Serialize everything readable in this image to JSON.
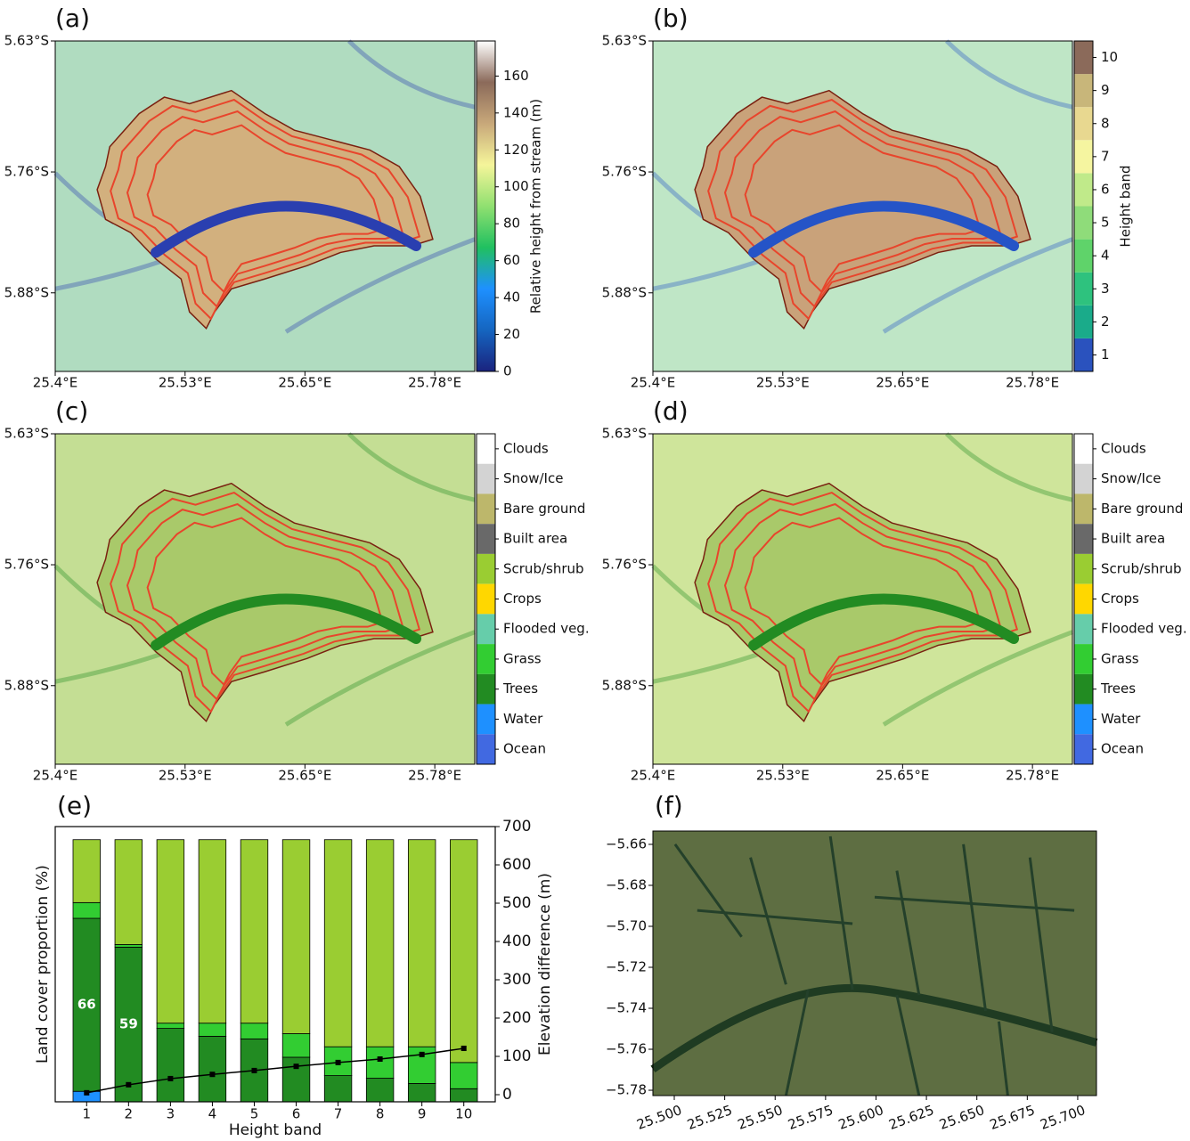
{
  "chart_data": [
    {
      "type": "map",
      "panel": "(a)",
      "xlim": [
        25.4,
        25.82
      ],
      "ylim": [
        -5.958,
        -5.63
      ],
      "xticks": [
        {
          "value": 25.4,
          "label": "25.4°E"
        },
        {
          "value": 25.53,
          "label": "25.53°E"
        },
        {
          "value": 25.65,
          "label": "25.65°E"
        },
        {
          "value": 25.78,
          "label": "25.78°E"
        }
      ],
      "yticks": [
        {
          "value": -5.63,
          "label": "5.63°S"
        },
        {
          "value": -5.76,
          "label": "5.76°S"
        },
        {
          "value": -5.88,
          "label": "5.88°S"
        }
      ],
      "background": "#b0dcc0",
      "basin_color": "#d2b07e",
      "river_color": "#2a3fb0",
      "colorbar": {
        "label": "Relative height from stream (m)",
        "lim": [
          0,
          179
        ],
        "ticks": [
          0,
          20,
          40,
          60,
          80,
          100,
          120,
          140,
          160
        ],
        "colors": [
          "#1a237e",
          "#1565c0",
          "#1e90ff",
          "#20c060",
          "#90e070",
          "#f5f59a",
          "#c8a87a",
          "#8b6a5a",
          "#ffffff"
        ]
      }
    },
    {
      "type": "map",
      "panel": "(b)",
      "xlim": [
        25.4,
        25.82
      ],
      "ylim": [
        -5.958,
        -5.63
      ],
      "xticks": [
        {
          "value": 25.4,
          "label": "25.4°E"
        },
        {
          "value": 25.53,
          "label": "25.53°E"
        },
        {
          "value": 25.65,
          "label": "25.65°E"
        },
        {
          "value": 25.78,
          "label": "25.78°E"
        }
      ],
      "yticks": [
        {
          "value": -5.63,
          "label": "5.63°S"
        },
        {
          "value": -5.76,
          "label": "5.76°S"
        },
        {
          "value": -5.88,
          "label": "5.88°S"
        }
      ],
      "background": "#bfe6c6",
      "basin_color": "#c9a27a",
      "river_color": "#2554c7",
      "colorbar": {
        "label": "Height band",
        "lim": [
          0.5,
          10.5
        ],
        "ticks": [
          1,
          2,
          3,
          4,
          5,
          6,
          7,
          8,
          9,
          10
        ],
        "discrete": true,
        "colors": [
          "#2a52be",
          "#1aab8a",
          "#2ec27e",
          "#5fd36a",
          "#8fdc7a",
          "#c0ea8a",
          "#f5f5a0",
          "#e8d890",
          "#c8b67a",
          "#8b6a5a"
        ]
      }
    },
    {
      "type": "map",
      "panel": "(c)",
      "xlim": [
        25.4,
        25.82
      ],
      "ylim": [
        -5.958,
        -5.63
      ],
      "xticks": [
        {
          "value": 25.4,
          "label": "25.4°E"
        },
        {
          "value": 25.53,
          "label": "25.53°E"
        },
        {
          "value": 25.65,
          "label": "25.65°E"
        },
        {
          "value": 25.78,
          "label": "25.78°E"
        }
      ],
      "yticks": [
        {
          "value": -5.63,
          "label": "5.63°S"
        },
        {
          "value": -5.76,
          "label": "5.76°S"
        },
        {
          "value": -5.88,
          "label": "5.88°S"
        }
      ],
      "background": "#c4de94",
      "basin_color": "#a9c96a",
      "river_color": "#228b22",
      "colorbar": {
        "categories": [
          "Clouds",
          "Snow/Ice",
          "Bare ground",
          "Built area",
          "Scrub/shrub",
          "Crops",
          "Flooded veg.",
          "Grass",
          "Trees",
          "Water",
          "Ocean"
        ],
        "colors": [
          "#ffffff",
          "#d3d3d3",
          "#bdb76b",
          "#696969",
          "#9acd32",
          "#ffd700",
          "#66cdaa",
          "#32cd32",
          "#228b22",
          "#1e90ff",
          "#4169e1"
        ]
      }
    },
    {
      "type": "map",
      "panel": "(d)",
      "xlim": [
        25.4,
        25.82
      ],
      "ylim": [
        -5.958,
        -5.63
      ],
      "xticks": [
        {
          "value": 25.4,
          "label": "25.4°E"
        },
        {
          "value": 25.53,
          "label": "25.53°E"
        },
        {
          "value": 25.65,
          "label": "25.65°E"
        },
        {
          "value": 25.78,
          "label": "25.78°E"
        }
      ],
      "yticks": [
        {
          "value": -5.63,
          "label": "5.63°S"
        },
        {
          "value": -5.76,
          "label": "5.76°S"
        },
        {
          "value": -5.88,
          "label": "5.88°S"
        }
      ],
      "background": "#cfe59b",
      "basin_color": "#a9c96a",
      "river_color": "#228b22",
      "colorbar": {
        "categories": [
          "Clouds",
          "Snow/Ice",
          "Bare ground",
          "Built area",
          "Scrub/shrub",
          "Crops",
          "Flooded veg.",
          "Grass",
          "Trees",
          "Water",
          "Ocean"
        ],
        "colors": [
          "#ffffff",
          "#d3d3d3",
          "#bdb76b",
          "#696969",
          "#9acd32",
          "#ffd700",
          "#66cdaa",
          "#32cd32",
          "#228b22",
          "#1e90ff",
          "#4169e1"
        ]
      }
    },
    {
      "type": "bar",
      "panel": "(e)",
      "stacked": true,
      "categories": [
        "1",
        "2",
        "3",
        "4",
        "5",
        "6",
        "7",
        "8",
        "9",
        "10"
      ],
      "xlabel": "Height band",
      "ylabel": "Land cover proportion (%)",
      "ylim": [
        0,
        105
      ],
      "y2label": "Elevation difference (m)",
      "y2lim": [
        -18.6,
        700
      ],
      "y2ticks": [
        0,
        100,
        200,
        300,
        400,
        500,
        600,
        700
      ],
      "series": [
        {
          "color": "#1e90ff",
          "values": [
            4,
            0,
            0,
            0,
            0,
            0,
            0,
            0,
            0,
            0
          ]
        },
        {
          "color": "#228b22",
          "values": [
            66,
            59,
            28,
            25,
            24,
            17,
            10,
            9,
            7,
            5
          ],
          "value_labels": [
            "66",
            "59",
            null,
            null,
            null,
            null,
            null,
            null,
            null,
            null
          ]
        },
        {
          "color": "#32cd32",
          "values": [
            6,
            1,
            2,
            5,
            6,
            9,
            11,
            12,
            14,
            10
          ]
        },
        {
          "color": "#9acd32",
          "values": [
            24,
            40,
            70,
            70,
            70,
            74,
            79,
            79,
            79,
            85
          ]
        },
        {
          "axis": "y2",
          "color": "#000000",
          "values": [
            5,
            26,
            42,
            53,
            63,
            74,
            84,
            93,
            105,
            121
          ]
        }
      ]
    },
    {
      "type": "image",
      "panel": "(f)",
      "xlim": [
        25.4894,
        25.7093
      ],
      "ylim": [
        -5.7826,
        -5.6535
      ],
      "background": "#5e6e42",
      "xticks": [
        {
          "value": 25.5,
          "label": "25.500"
        },
        {
          "value": 25.525,
          "label": "25.525"
        },
        {
          "value": 25.55,
          "label": "25.550"
        },
        {
          "value": 25.575,
          "label": "25.575"
        },
        {
          "value": 25.6,
          "label": "25.600"
        },
        {
          "value": 25.625,
          "label": "25.625"
        },
        {
          "value": 25.65,
          "label": "25.650"
        },
        {
          "value": 25.675,
          "label": "25.675"
        },
        {
          "value": 25.7,
          "label": "25.700"
        }
      ],
      "yticks": [
        {
          "value": -5.66,
          "label": "−5.66"
        },
        {
          "value": -5.68,
          "label": "−5.68"
        },
        {
          "value": -5.7,
          "label": "−5.70"
        },
        {
          "value": -5.72,
          "label": "−5.72"
        },
        {
          "value": -5.74,
          "label": "−5.74"
        },
        {
          "value": -5.76,
          "label": "−5.76"
        },
        {
          "value": -5.78,
          "label": "−5.78"
        }
      ]
    }
  ]
}
